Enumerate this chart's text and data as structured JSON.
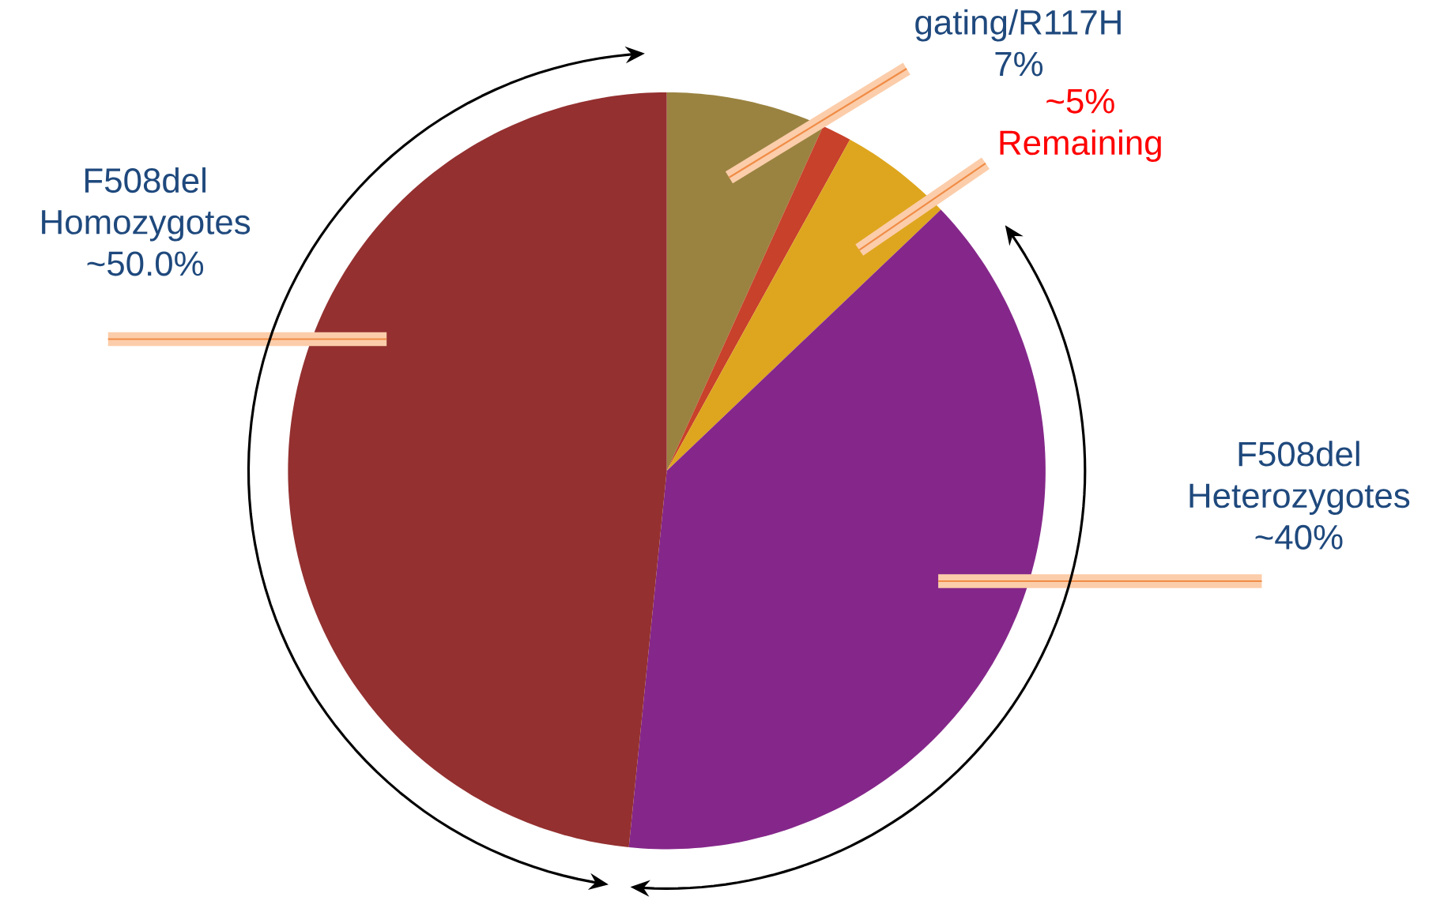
{
  "chart_data": {
    "type": "pie",
    "categories": [
      "gating/R117H",
      null,
      "Remaining",
      "F508del Heterozygotes",
      "F508del Homozygotes"
    ],
    "values": [
      7,
      1.3,
      5,
      40,
      50
    ],
    "value_labels": [
      "7%",
      null,
      "~5%",
      "~40%",
      "~50.0%"
    ],
    "colors": [
      "#9a8340",
      "#c8412a",
      "#dea61e",
      "#85278a",
      "#943030"
    ]
  }
}
